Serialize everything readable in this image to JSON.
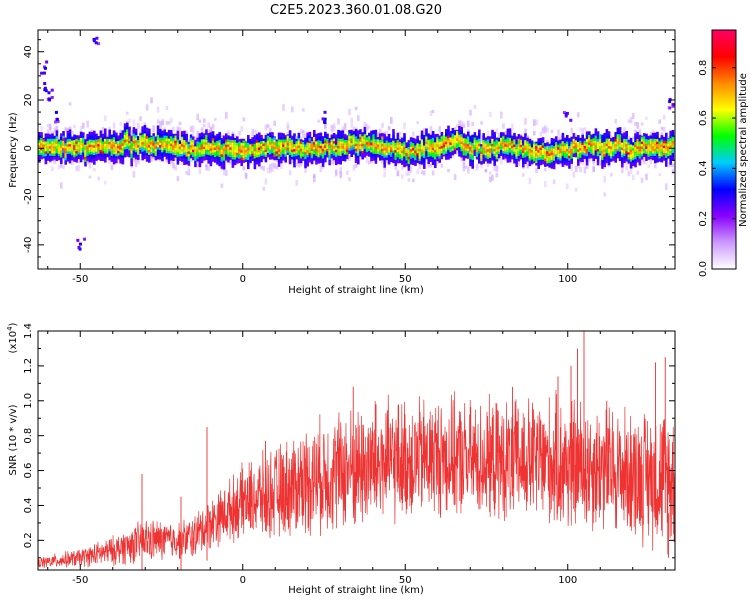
{
  "figure": {
    "title": "C2E5.2023.360.01.08.G20"
  },
  "chart_data": [
    {
      "type": "heatmap",
      "xlabel": "Height of straight line (km)",
      "ylabel": "Frequency (Hz)",
      "xlim": [
        -63,
        133
      ],
      "ylim": [
        -50,
        49
      ],
      "xticks": [
        -50,
        0,
        50,
        100
      ],
      "xtick_labels": [
        "-50",
        "0",
        "50",
        "100"
      ],
      "yticks": [
        -40,
        -20,
        0,
        20,
        40
      ],
      "ytick_labels": [
        "-40",
        "-20",
        "0",
        "20",
        "40"
      ],
      "grid": false,
      "colorbar": {
        "label": "Normalized spectral amplitude",
        "range": [
          0,
          0.95
        ],
        "ticks": [
          0.0,
          0.2,
          0.4,
          0.6,
          0.8
        ],
        "tick_labels": [
          "0.0",
          "0.2",
          "0.4",
          "0.6",
          "0.8"
        ],
        "colors": [
          "#ffffff",
          "#cc99ff",
          "#8800ff",
          "#0000ff",
          "#00ccff",
          "#00ff00",
          "#ffff00",
          "#ff8800",
          "#ff0000",
          "#ff0066"
        ]
      },
      "ridge": {
        "x": [
          -63,
          -50,
          -40,
          -30,
          -20,
          -10,
          0,
          10,
          20,
          30,
          40,
          50,
          60,
          65,
          70,
          80,
          90,
          95,
          100,
          110,
          120,
          133
        ],
        "y": [
          1,
          0,
          1,
          2,
          1,
          0,
          -1,
          1,
          0,
          1,
          2,
          -1,
          1,
          3,
          0,
          1,
          -1,
          -2,
          0,
          1,
          0,
          1
        ]
      },
      "outliers": [
        {
          "x": -61,
          "y": 33
        },
        {
          "x": -60,
          "y": 25
        },
        {
          "x": -59,
          "y": 21
        },
        {
          "x": -57,
          "y": 12
        },
        {
          "x": -50,
          "y": -40
        },
        {
          "x": -45,
          "y": 44
        },
        {
          "x": 25,
          "y": 12
        },
        {
          "x": 100,
          "y": 14
        },
        {
          "x": 132,
          "y": 19
        }
      ]
    },
    {
      "type": "line",
      "xlabel": "Height of straight line (km)",
      "ylabel": "SNR (10 * v/v)",
      "scale_label": "(x10",
      "scale_exp": "4",
      "scale_close": ")",
      "xlim": [
        -63,
        133
      ],
      "ylim": [
        0.03,
        1.4
      ],
      "xticks": [
        -50,
        0,
        50,
        100
      ],
      "xtick_labels": [
        "-50",
        "0",
        "50",
        "100"
      ],
      "yticks": [
        0.2,
        0.4,
        0.6,
        0.8,
        1.0,
        1.2,
        1.4
      ],
      "ytick_labels": [
        "0.2",
        "0.4",
        "0.6",
        "0.8",
        "1.0",
        "1.2",
        "1.4"
      ],
      "grid": false,
      "series": [
        {
          "color": "#ee3333",
          "envelope": {
            "x": [
              -63,
              -50,
              -40,
              -30,
              -20,
              -15,
              -10,
              -5,
              0,
              10,
              20,
              30,
              40,
              50,
              60,
              70,
              80,
              90,
              100,
              110,
              120,
              133
            ],
            "mean": [
              0.07,
              0.1,
              0.14,
              0.2,
              0.2,
              0.22,
              0.3,
              0.36,
              0.42,
              0.47,
              0.55,
              0.6,
              0.63,
              0.66,
              0.68,
              0.66,
              0.65,
              0.66,
              0.63,
              0.62,
              0.58,
              0.55
            ],
            "spread": [
              0.03,
              0.05,
              0.08,
              0.12,
              0.1,
              0.12,
              0.14,
              0.16,
              0.2,
              0.25,
              0.3,
              0.33,
              0.35,
              0.33,
              0.33,
              0.32,
              0.33,
              0.34,
              0.38,
              0.35,
              0.35,
              0.4
            ]
          },
          "spikes": [
            {
              "x": -31,
              "y": 0.58
            },
            {
              "x": -19,
              "y": 0.45
            },
            {
              "x": -11,
              "y": 0.85
            },
            {
              "x": 7,
              "y": 0.77
            },
            {
              "x": 34,
              "y": 1.08
            },
            {
              "x": 41,
              "y": 0.98
            },
            {
              "x": 83,
              "y": 1.08
            },
            {
              "x": 97,
              "y": 1.14
            },
            {
              "x": 101,
              "y": 1.2
            },
            {
              "x": 103,
              "y": 1.3
            },
            {
              "x": 105,
              "y": 1.4
            },
            {
              "x": 112,
              "y": 1.0
            },
            {
              "x": 127,
              "y": 1.22
            },
            {
              "x": 130,
              "y": 1.25
            },
            {
              "x": 131,
              "y": 0.1
            }
          ]
        }
      ]
    }
  ]
}
